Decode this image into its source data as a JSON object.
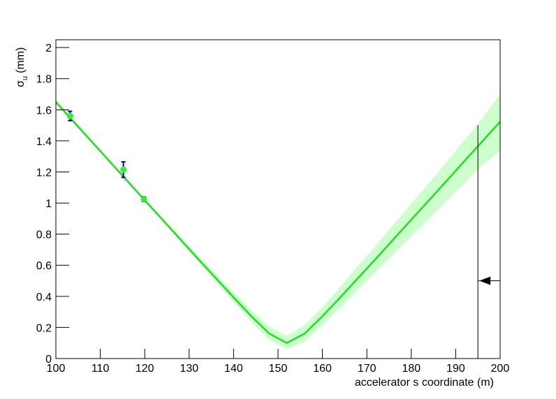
{
  "chart_data": {
    "type": "scatter",
    "ylabel": {
      "symbol": "σ",
      "sub": "u",
      "unit": "(mm)"
    },
    "xlabel": "accelerator s coordinate (m)",
    "xlim": [
      100,
      200
    ],
    "ylim": [
      0,
      2.05
    ],
    "xticks": [
      100,
      110,
      120,
      130,
      140,
      150,
      160,
      170,
      180,
      190,
      200
    ],
    "yticks": [
      0,
      0.2,
      0.4,
      0.6,
      0.8,
      1,
      1.2,
      1.4,
      1.6,
      1.8,
      2
    ],
    "points": {
      "x": [
        103.2,
        115.2,
        119.8
      ],
      "values": [
        1.56,
        1.215,
        1.025
      ],
      "errors": [
        0.03,
        0.05,
        0.015
      ],
      "color": "#33ee33",
      "error_color": "#0000cc"
    },
    "fit": {
      "x": [
        100,
        104,
        108,
        112,
        116,
        120,
        124,
        128,
        132,
        136,
        140,
        144,
        148,
        152,
        156,
        160,
        164,
        168,
        172,
        176,
        180,
        184,
        188,
        192,
        196,
        200
      ],
      "values": [
        1.65,
        1.523,
        1.397,
        1.271,
        1.144,
        1.018,
        0.893,
        0.767,
        0.641,
        0.517,
        0.393,
        0.272,
        0.161,
        0.1,
        0.161,
        0.272,
        0.393,
        0.517,
        0.641,
        0.767,
        0.893,
        1.018,
        1.144,
        1.271,
        1.397,
        1.523
      ],
      "lower": [
        1.635,
        1.51,
        1.386,
        1.261,
        1.135,
        1.008,
        0.88,
        0.752,
        0.622,
        0.492,
        0.362,
        0.235,
        0.12,
        0.06,
        0.11,
        0.215,
        0.325,
        0.44,
        0.555,
        0.67,
        0.785,
        0.9,
        1.015,
        1.13,
        1.245,
        1.335
      ],
      "upper": [
        1.665,
        1.536,
        1.408,
        1.281,
        1.153,
        1.028,
        0.906,
        0.782,
        0.66,
        0.542,
        0.424,
        0.309,
        0.205,
        0.145,
        0.215,
        0.33,
        0.46,
        0.595,
        0.725,
        0.86,
        0.995,
        1.13,
        1.265,
        1.405,
        1.545,
        1.7
      ],
      "color": "#22dd22",
      "band_color": "#ccffcc"
    },
    "marker": {
      "x": 195,
      "ymax": 1.5,
      "arrow_y": 0.5
    }
  }
}
